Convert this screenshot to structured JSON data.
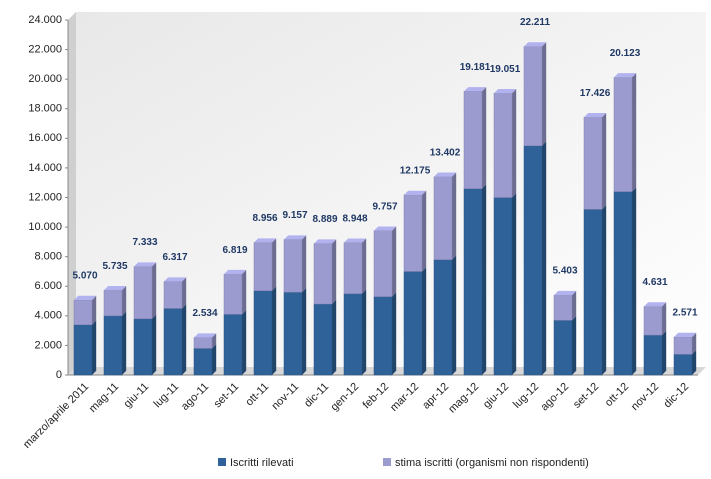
{
  "chart_data": {
    "type": "bar",
    "stacked": true,
    "categories": [
      "marzo/aprile 2011",
      "mag-11",
      "giu-11",
      "lug-11",
      "ago-11",
      "set-11",
      "ott-11",
      "nov-11",
      "dic-11",
      "gen-12",
      "feb-12",
      "mar-12",
      "apr-12",
      "mag-12",
      "giu-12",
      "lug-12",
      "ago-12",
      "set-12",
      "ott-12",
      "nov-12",
      "dic-12"
    ],
    "series": [
      {
        "name": "Iscritti rilevati",
        "color": "#2f6299",
        "values": [
          3400,
          4000,
          3800,
          4500,
          1800,
          4100,
          5700,
          5600,
          4800,
          5500,
          5300,
          7000,
          7800,
          12600,
          12000,
          15500,
          3700,
          11200,
          12400,
          2700,
          1400
        ]
      },
      {
        "name": "stima iscritti (organismi non rispondenti)",
        "color": "#9b9bd0",
        "values": [
          1670,
          1735,
          3533,
          1817,
          734,
          2719,
          3256,
          3557,
          4089,
          3448,
          4457,
          5175,
          5602,
          6581,
          7051,
          6711,
          1703,
          6226,
          7723,
          1931,
          1171
        ]
      }
    ],
    "totals": [
      5070,
      5735,
      7333,
      6317,
      2534,
      6819,
      8956,
      9157,
      8889,
      8948,
      9757,
      12175,
      13402,
      19181,
      19051,
      22211,
      5403,
      17426,
      20123,
      4631,
      2571
    ],
    "value_labels": [
      "5.070",
      "5.735",
      "7.333",
      "6.317",
      "2.534",
      "6.819",
      "8.956",
      "9.157",
      "8.889",
      "8.948",
      "9.757",
      "12.175",
      "13.402",
      "19.181",
      "19.051",
      "22.211",
      "5.403",
      "17.426",
      "20.123",
      "4.631",
      "2.571"
    ],
    "ylim": [
      0,
      24000
    ],
    "yticks": [
      0,
      {
        "value": 2000,
        "label": "2.000"
      },
      {
        "value": 4000,
        "label": "4.000"
      },
      {
        "value": 6000,
        "label": "6.000"
      },
      {
        "value": 8000,
        "label": "8.000"
      },
      {
        "value": 10000,
        "label": "10.000"
      },
      {
        "value": 12000,
        "label": "12.000"
      },
      {
        "value": 14000,
        "label": "14.000"
      },
      {
        "value": 16000,
        "label": "16.000"
      },
      {
        "value": 18000,
        "label": "18.000"
      },
      {
        "value": 20000,
        "label": "20.000"
      },
      {
        "value": 22000,
        "label": "22.000"
      },
      {
        "value": 24000,
        "label": "24.000"
      }
    ],
    "grid": false,
    "legend": "bottom"
  }
}
